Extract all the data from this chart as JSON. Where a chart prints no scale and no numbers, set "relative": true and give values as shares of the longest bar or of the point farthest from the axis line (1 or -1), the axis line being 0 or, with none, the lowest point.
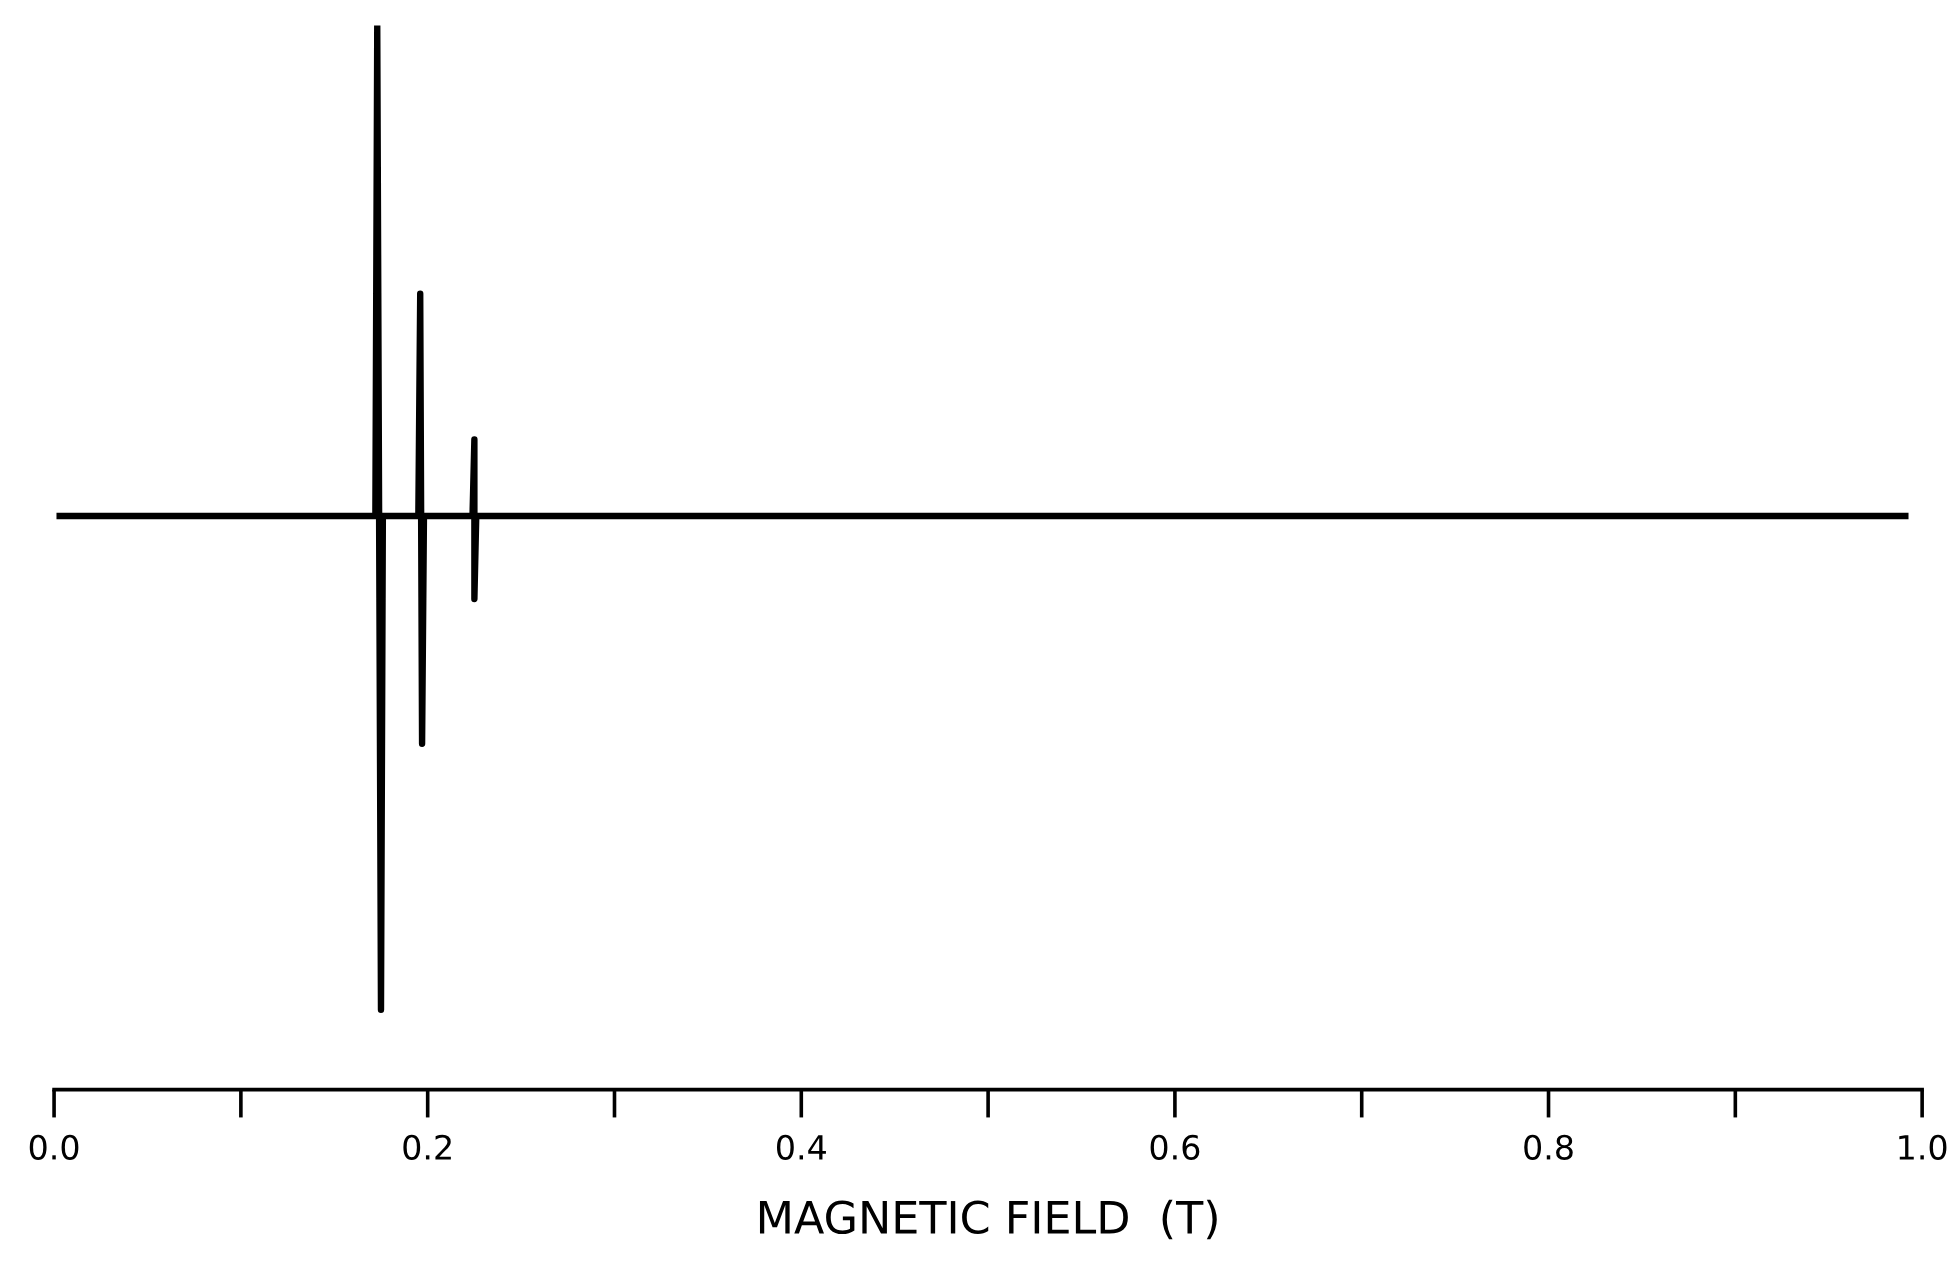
{
  "chart_data": {
    "type": "line",
    "xlabel": "MAGNETIC FIELD  (T)",
    "relative": true,
    "x": [
      0.003,
      0.172,
      0.173,
      0.175,
      0.176,
      0.195,
      0.196,
      0.197,
      0.198,
      0.224,
      0.225,
      0.225,
      0.226,
      0.991
    ],
    "series": [
      {
        "color": "#000000",
        "values": [
          0.539,
          0.539,
          1.0,
          0.075,
          0.539,
          0.539,
          0.748,
          0.325,
          0.539,
          0.539,
          0.611,
          0.461,
          0.539,
          0.539
        ]
      }
    ],
    "xlim": [
      0.0,
      1.0
    ],
    "xticks": [
      {
        "value": 0.0,
        "label": "0.0"
      },
      {
        "value": 0.1,
        "label": null
      },
      {
        "value": 0.2,
        "label": "0.2"
      },
      {
        "value": 0.3,
        "label": null
      },
      {
        "value": 0.4,
        "label": "0.4"
      },
      {
        "value": 0.5,
        "label": null
      },
      {
        "value": 0.6,
        "label": "0.6"
      },
      {
        "value": 0.7,
        "label": null
      },
      {
        "value": 0.8,
        "label": "0.8"
      },
      {
        "value": 0.9,
        "label": null
      },
      {
        "value": 1.0,
        "label": "1.0"
      }
    ],
    "tick_labels": "x",
    "grid": false,
    "legend": false,
    "marker": "none",
    "line_style": "solid"
  }
}
